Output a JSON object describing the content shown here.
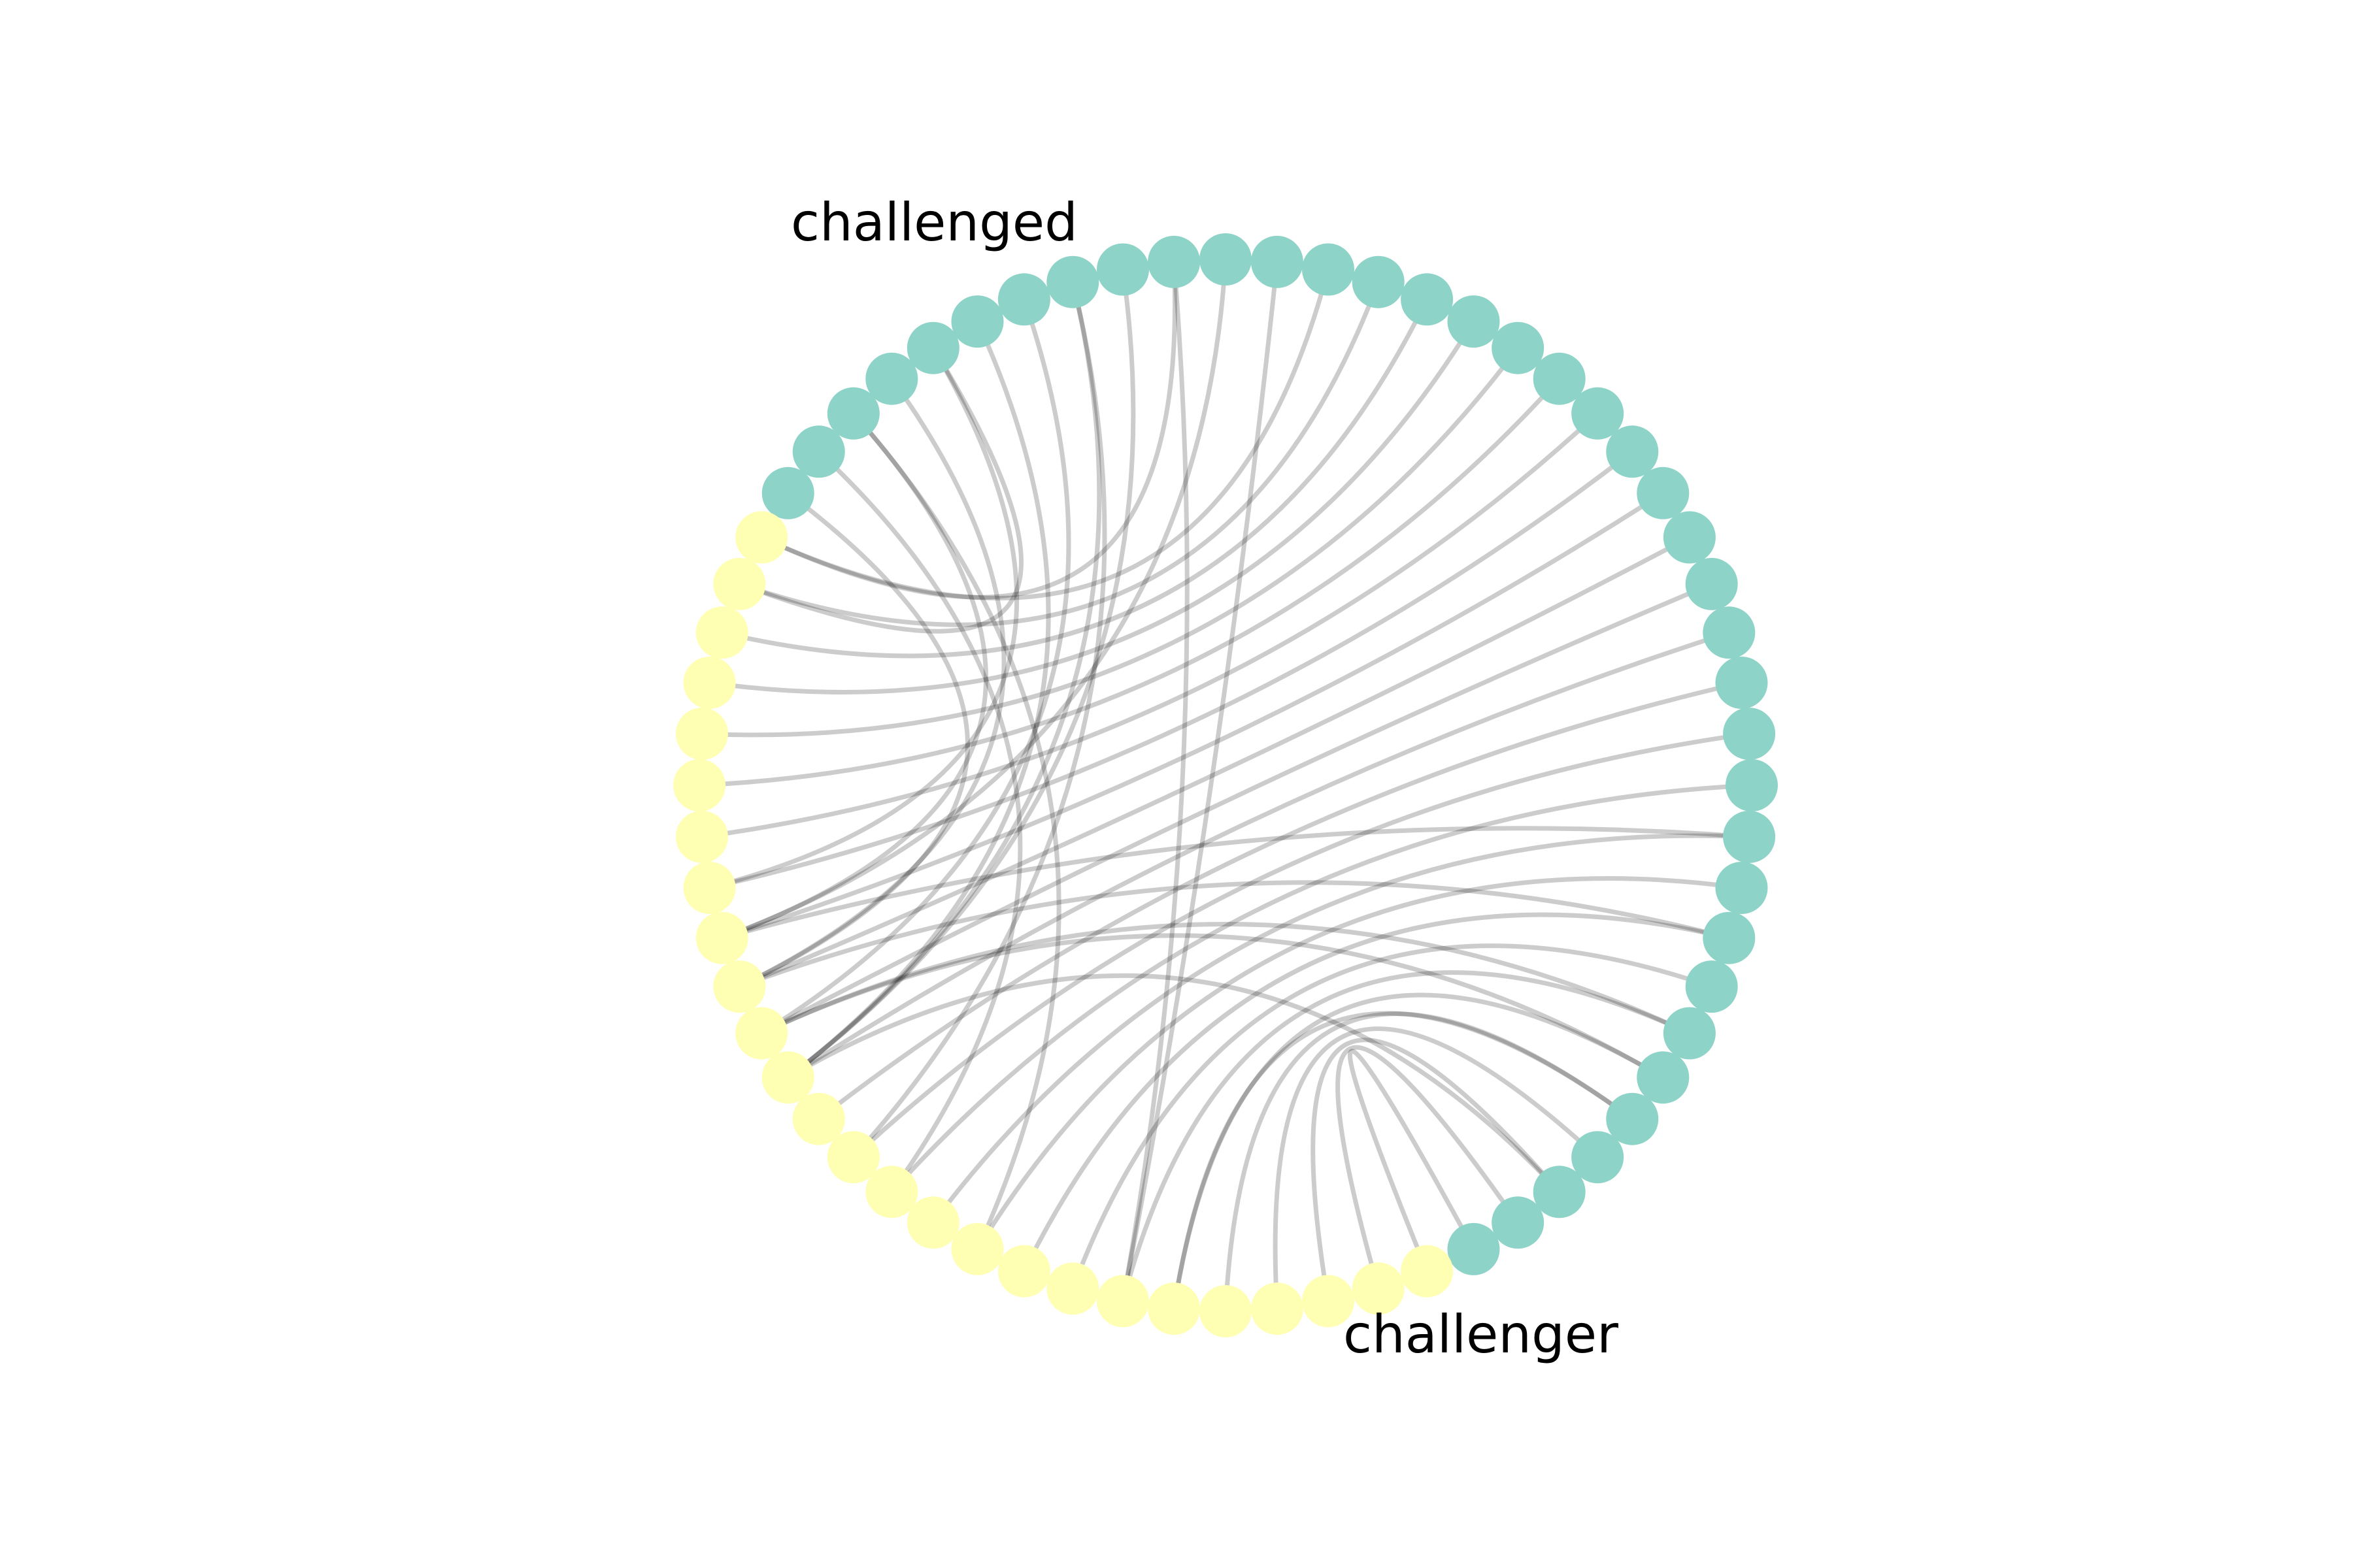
{
  "diagram": {
    "type": "circular-bipartite-graph",
    "groups": [
      {
        "id": "challenged",
        "label": "challenged",
        "color": "#8dd3c7",
        "count": 38
      },
      {
        "id": "challenger",
        "label": "challenger",
        "color": "#ffffb3",
        "count": 26
      }
    ],
    "edge_color": "#000000",
    "edge_opacity": 0.2,
    "edges": [
      [
        0,
        63
      ],
      [
        1,
        62
      ],
      [
        2,
        61
      ],
      [
        3,
        60
      ],
      [
        4,
        59
      ],
      [
        5,
        58
      ],
      [
        6,
        57
      ],
      [
        7,
        56
      ],
      [
        8,
        55
      ],
      [
        9,
        54
      ],
      [
        10,
        53
      ],
      [
        11,
        52
      ],
      [
        12,
        51
      ],
      [
        13,
        50
      ],
      [
        14,
        49
      ],
      [
        15,
        48
      ],
      [
        16,
        47
      ],
      [
        17,
        46
      ],
      [
        18,
        45
      ],
      [
        19,
        44
      ],
      [
        20,
        43
      ],
      [
        21,
        42
      ],
      [
        22,
        41
      ],
      [
        23,
        40
      ],
      [
        24,
        39
      ],
      [
        25,
        38
      ],
      [
        26,
        57
      ],
      [
        27,
        46
      ],
      [
        28,
        57
      ],
      [
        29,
        49
      ],
      [
        30,
        51
      ],
      [
        31,
        48
      ],
      [
        32,
        49
      ],
      [
        33,
        39
      ],
      [
        34,
        47
      ],
      [
        35,
        54
      ],
      [
        36,
        52
      ],
      [
        37,
        47
      ],
      [
        2,
        49
      ],
      [
        5,
        48
      ],
      [
        30,
        49
      ],
      [
        33,
        45
      ],
      [
        35,
        46
      ],
      [
        28,
        38
      ],
      [
        4,
        58
      ],
      [
        6,
        48
      ],
      [
        8,
        47
      ],
      [
        10,
        46
      ]
    ]
  }
}
